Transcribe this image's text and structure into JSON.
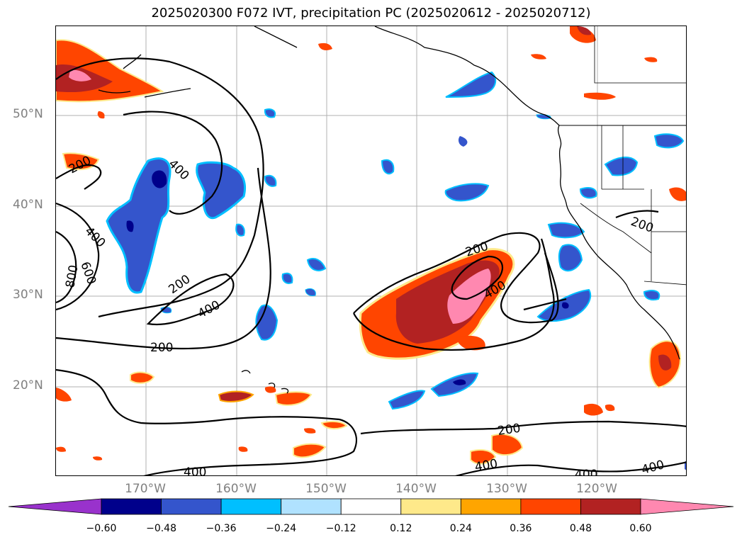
{
  "title": "2025020300 F072 IVT, precipitation PC (2025020612 - 2025020712)",
  "lat_labels": [
    "50°N",
    "40°N",
    "30°N",
    "20°N"
  ],
  "lon_labels": [
    "170°W",
    "160°W",
    "150°W",
    "140°W",
    "130°W",
    "120°W"
  ],
  "ivt_contour_labels": [
    "200",
    "400",
    "800",
    "600",
    "400",
    "200",
    "400",
    "200",
    "200",
    "400",
    "400",
    "200",
    "400",
    "400",
    "400",
    "200"
  ],
  "colorbar": {
    "ticks": [
      "−0.60",
      "−0.48",
      "−0.36",
      "−0.24",
      "−0.12",
      "0.12",
      "0.24",
      "0.36",
      "0.48",
      "0.60"
    ],
    "colors": [
      "#9932cc",
      "#00008b",
      "#3455cc",
      "#00bfff",
      "#b0e2ff",
      "#ffffff",
      "#fee98a",
      "#ffa500",
      "#ff4500",
      "#b22222",
      "#ff88b0"
    ]
  },
  "colors": {
    "neg_strong": "#00008b",
    "neg_mid": "#3455cc",
    "neg_light": "#00bfff",
    "neg_faint": "#b0e2ff",
    "pos_faint": "#fee98a",
    "pos_light": "#ffa500",
    "pos_mid": "#ff4500",
    "pos_strong": "#b22222",
    "pos_max": "#ff88b0",
    "grid": "#b0b0b0",
    "contour": "#000000",
    "axis_label": "#808080"
  }
}
